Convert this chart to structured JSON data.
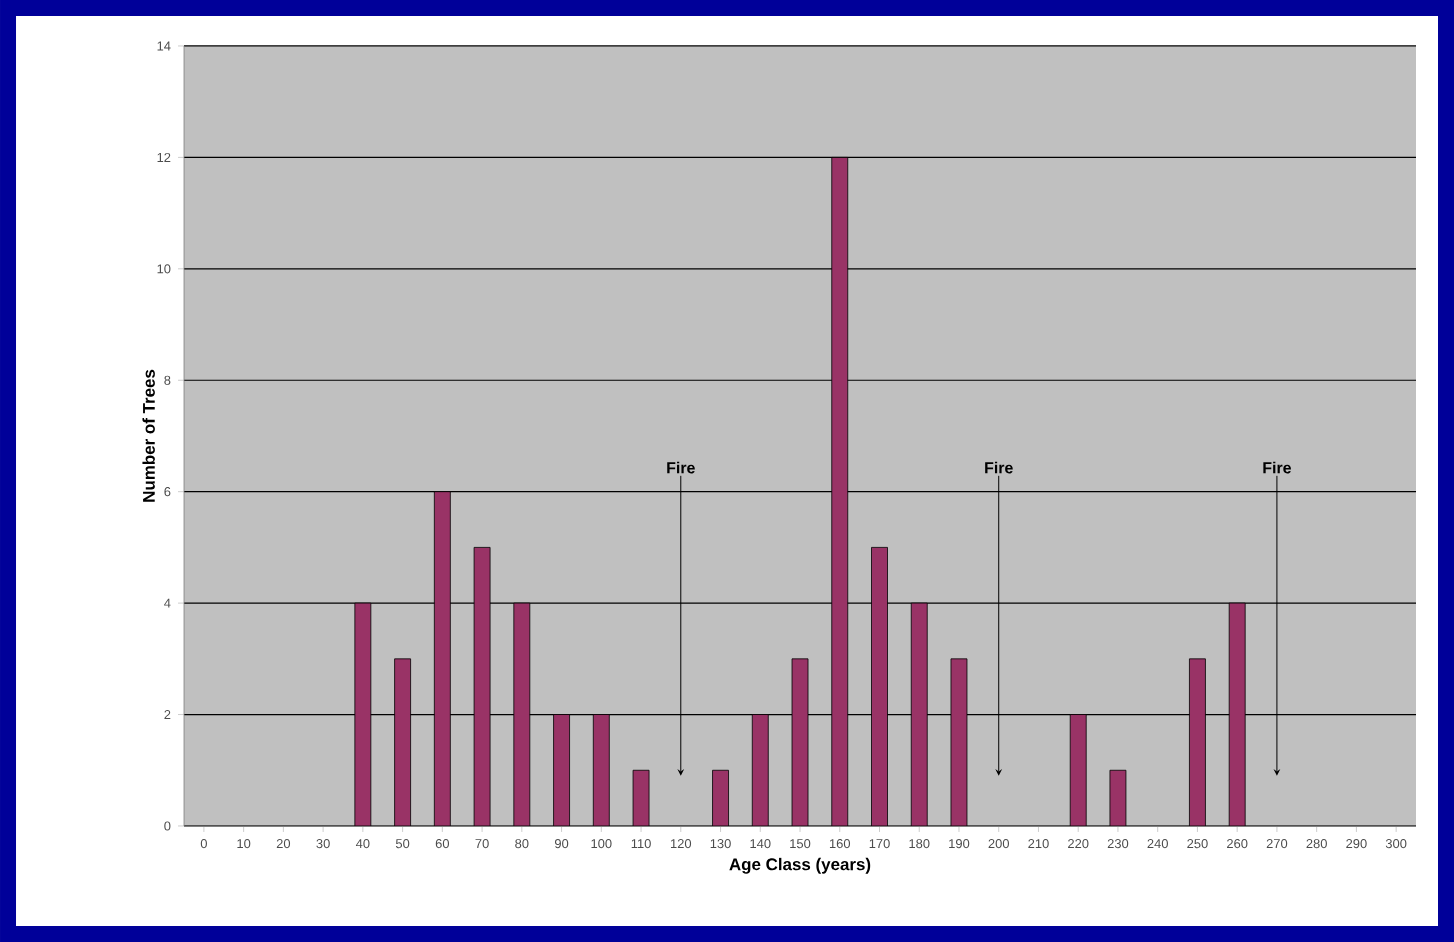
{
  "chart_data": {
    "type": "bar",
    "xlabel": "Age Class (years)",
    "ylabel": "Number of Trees",
    "categories": [
      "0",
      "10",
      "20",
      "30",
      "40",
      "50",
      "60",
      "70",
      "80",
      "90",
      "100",
      "110",
      "120",
      "130",
      "140",
      "150",
      "160",
      "170",
      "180",
      "190",
      "200",
      "210",
      "220",
      "230",
      "240",
      "250",
      "260",
      "270",
      "280",
      "290",
      "300"
    ],
    "values": [
      null,
      null,
      null,
      null,
      4,
      3,
      6,
      5,
      4,
      2,
      2,
      1,
      null,
      1,
      2,
      3,
      12,
      5,
      4,
      3,
      null,
      null,
      2,
      1,
      null,
      3,
      4,
      null,
      null,
      null,
      null
    ],
    "color": "#993366",
    "ylim": [
      0,
      14
    ],
    "yticks": [
      0,
      2,
      4,
      6,
      8,
      10,
      12,
      14
    ],
    "grid": "y",
    "annotations": [
      {
        "text": "Fire",
        "x": "120",
        "y": 0.9
      },
      {
        "text": "Fire",
        "x": "200",
        "y": 0.9
      },
      {
        "text": "Fire",
        "x": "270",
        "y": 0.9
      }
    ]
  }
}
